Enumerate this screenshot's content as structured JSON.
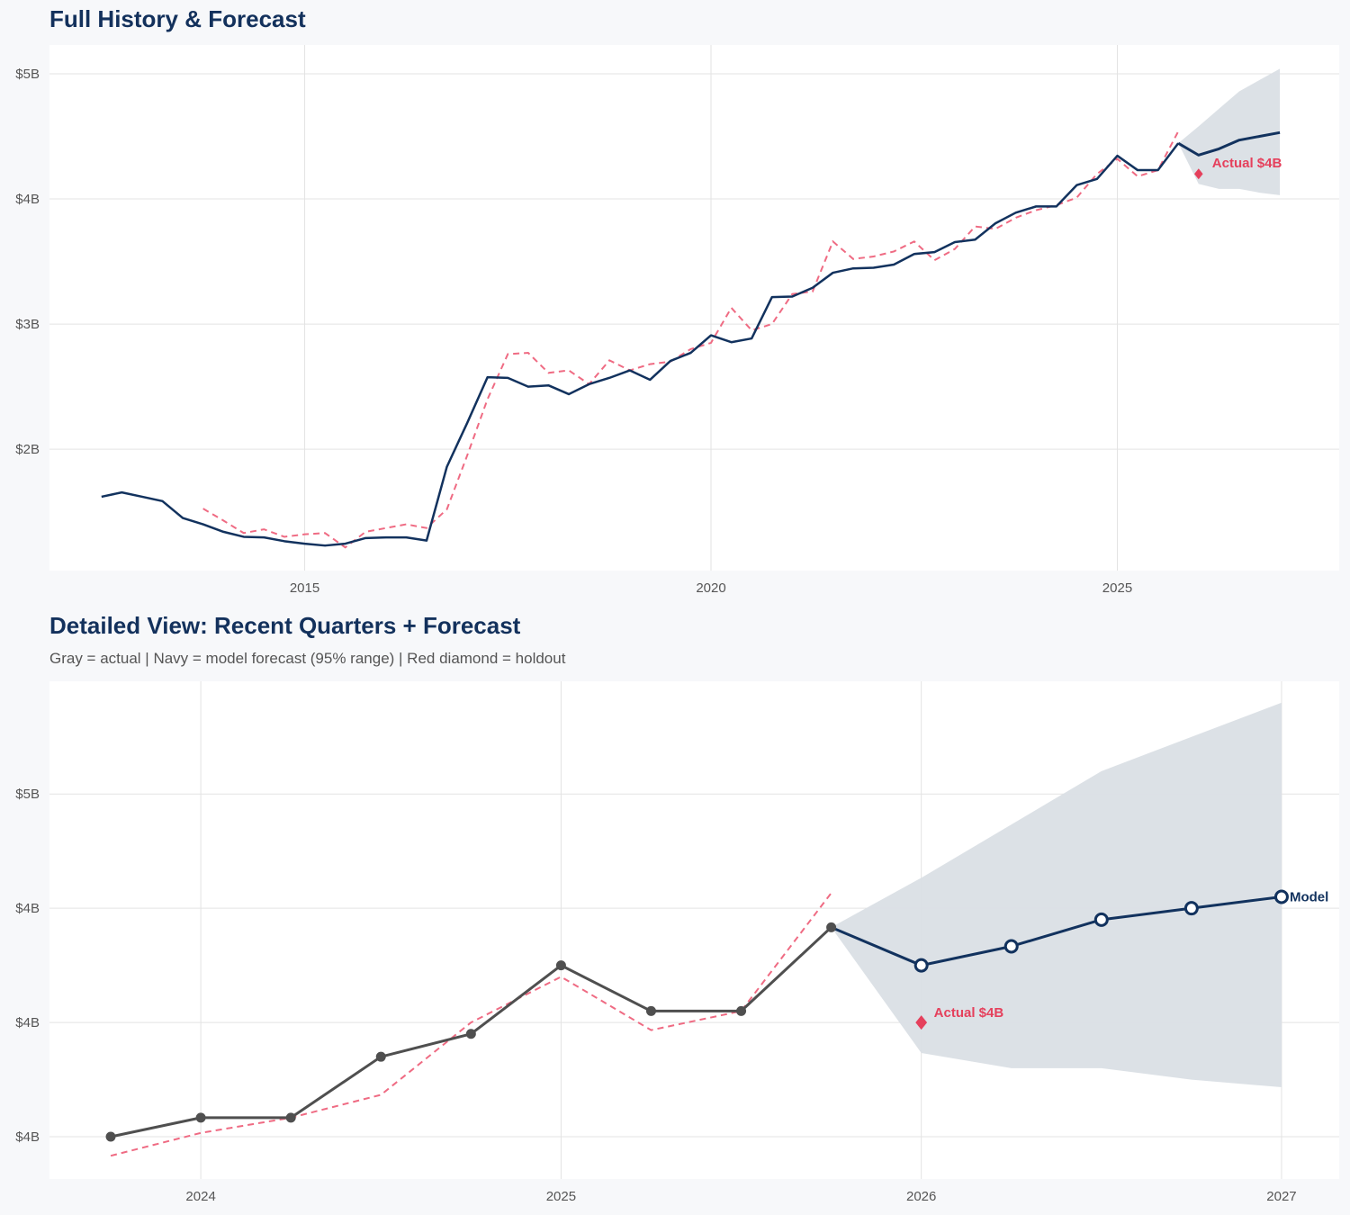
{
  "colors": {
    "actual_top": "#12325e",
    "actual_bottom": "#4f4f4f",
    "forecast": "#12325e",
    "fitted": "#ef6b83",
    "holdout": "#e5405c",
    "band": "#dadfe5",
    "grid": "#e3e3e3",
    "title": "#13315c"
  },
  "chart_data": [
    {
      "title": "Full History & Forecast",
      "type": "line",
      "xlim": [
        2011.86,
        2027.73
      ],
      "ylim": [
        1.03,
        5.23
      ],
      "grid": true,
      "x_ticks": [
        2015,
        2020,
        2025
      ],
      "x_tick_labels": [
        "2015",
        "2020",
        "2025"
      ],
      "y_ticks": [
        2,
        3,
        4,
        5
      ],
      "y_tick_labels": [
        "$2B",
        "$3B",
        "$4B",
        "$5B"
      ],
      "actual": {
        "x": [
          2012.5,
          2012.75,
          2013,
          2013.25,
          2013.5,
          2013.75,
          2014,
          2014.25,
          2014.5,
          2014.75,
          2015,
          2015.25,
          2015.5,
          2015.75,
          2016,
          2016.25,
          2016.5,
          2016.75,
          2017,
          2017.25,
          2017.5,
          2017.75,
          2018,
          2018.25,
          2018.5,
          2018.75,
          2019,
          2019.25,
          2019.5,
          2019.75,
          2020,
          2020.25,
          2020.5,
          2020.75,
          2021,
          2021.25,
          2021.5,
          2021.75,
          2022,
          2022.25,
          2022.5,
          2022.75,
          2023,
          2023.25,
          2023.5,
          2023.75,
          2024,
          2024.25,
          2024.5,
          2024.75,
          2025,
          2025.25,
          2025.5,
          2025.75
        ],
        "y": [
          1.62,
          1.655,
          1.62,
          1.585,
          1.45,
          1.4,
          1.34,
          1.3,
          1.295,
          1.265,
          1.245,
          1.23,
          1.245,
          1.29,
          1.295,
          1.295,
          1.27,
          1.86,
          2.21,
          2.575,
          2.57,
          2.5,
          2.51,
          2.44,
          2.52,
          2.57,
          2.63,
          2.555,
          2.705,
          2.77,
          2.91,
          2.855,
          2.885,
          3.215,
          3.22,
          3.29,
          3.41,
          3.445,
          3.45,
          3.475,
          3.56,
          3.575,
          3.655,
          3.675,
          3.805,
          3.89,
          3.94,
          3.94,
          4.11,
          4.16,
          4.345,
          4.23,
          4.23,
          4.445
        ]
      },
      "fitted": {
        "x": [
          2013.75,
          2014,
          2014.25,
          2014.5,
          2014.75,
          2015,
          2015.25,
          2015.5,
          2015.75,
          2016,
          2016.25,
          2016.5,
          2016.75,
          2017,
          2017.25,
          2017.5,
          2017.75,
          2018,
          2018.25,
          2018.5,
          2018.75,
          2019,
          2019.25,
          2019.5,
          2019.75,
          2020,
          2020.25,
          2020.5,
          2020.75,
          2021,
          2021.25,
          2021.5,
          2021.75,
          2022,
          2022.25,
          2022.5,
          2022.75,
          2023,
          2023.25,
          2023.5,
          2023.75,
          2024,
          2024.25,
          2024.5,
          2024.75,
          2025,
          2025.25,
          2025.5,
          2025.75
        ],
        "y": [
          1.525,
          1.43,
          1.33,
          1.36,
          1.3,
          1.32,
          1.33,
          1.215,
          1.34,
          1.37,
          1.4,
          1.37,
          1.52,
          1.95,
          2.4,
          2.76,
          2.77,
          2.61,
          2.63,
          2.52,
          2.71,
          2.63,
          2.68,
          2.7,
          2.8,
          2.85,
          3.13,
          2.95,
          3.0,
          3.24,
          3.26,
          3.66,
          3.52,
          3.54,
          3.58,
          3.66,
          3.51,
          3.6,
          3.78,
          3.76,
          3.85,
          3.91,
          3.95,
          4.01,
          4.2,
          4.32,
          4.18,
          4.23,
          4.54
        ]
      },
      "forecast": {
        "x": [
          2025.75,
          2026,
          2026.25,
          2026.5,
          2026.75,
          2027
        ],
        "mean": [
          4.445,
          4.35,
          4.4,
          4.47,
          4.5,
          4.53
        ],
        "lower": [
          4.445,
          4.12,
          4.08,
          4.08,
          4.05,
          4.03
        ],
        "upper": [
          4.445,
          4.58,
          4.72,
          4.86,
          4.95,
          5.04
        ]
      },
      "holdout": {
        "x": 2026,
        "y": 4.2,
        "label": "Actual $4B"
      }
    },
    {
      "title": "Detailed View: Recent Quarters + Forecast",
      "subtitle": "Gray = actual  |  Navy = model forecast (95% range)  |  Red diamond = holdout",
      "type": "line",
      "xlim": [
        2023.58,
        2027.16
      ],
      "ylim": [
        3.789,
        5.096
      ],
      "grid": true,
      "x_ticks": [
        2024,
        2025,
        2026,
        2027
      ],
      "x_tick_labels": [
        "2024",
        "2025",
        "2026",
        "2027"
      ],
      "y_ticks": [
        3.9,
        4.2,
        4.5,
        4.8
      ],
      "y_tick_labels": [
        "$4B",
        "$4B",
        "$4B",
        "$5B"
      ],
      "actual": {
        "x": [
          2023.75,
          2024,
          2024.25,
          2024.5,
          2024.75,
          2025,
          2025.25,
          2025.5,
          2025.75
        ],
        "y": [
          3.9,
          3.95,
          3.95,
          4.11,
          4.17,
          4.35,
          4.23,
          4.23,
          4.45
        ]
      },
      "fitted": {
        "x": [
          2023.75,
          2024,
          2024.25,
          2024.5,
          2024.75,
          2025,
          2025.25,
          2025.5,
          2025.75
        ],
        "y": [
          3.85,
          3.91,
          3.95,
          4.01,
          4.2,
          4.32,
          4.18,
          4.23,
          4.54
        ]
      },
      "forecast": {
        "x": [
          2025.75,
          2026,
          2026.25,
          2026.5,
          2026.75,
          2027
        ],
        "mean": [
          4.45,
          4.35,
          4.4,
          4.47,
          4.5,
          4.53
        ],
        "lower": [
          4.45,
          4.12,
          4.08,
          4.08,
          4.05,
          4.03
        ],
        "upper": [
          4.45,
          4.58,
          4.72,
          4.86,
          4.95,
          5.04
        ]
      },
      "holdout": {
        "x": 2026,
        "y": 4.2,
        "label": "Actual $4B"
      },
      "forecast_label": "Model"
    }
  ]
}
